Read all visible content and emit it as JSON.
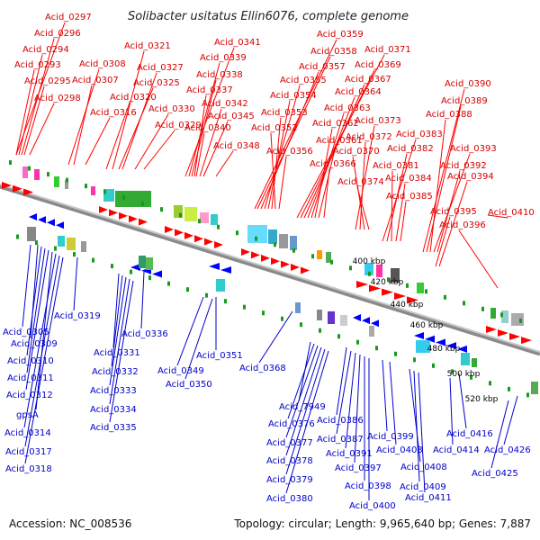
{
  "title": "Solibacter usitatus Ellin6076, complete genome",
  "footer": {
    "accession": "Accession: NC_008536",
    "summary": "Topology: circular; Length: 9,965,640 bp; Genes: 7,887"
  },
  "ticks": [
    "400 kbp",
    "420 kbp",
    "440 kbp",
    "460 kbp",
    "480 kbp",
    "500 kbp",
    "520 kbp"
  ],
  "labels_top": [
    "Acid_0297",
    "Acid_0296",
    "Acid_0294",
    "Acid_0293",
    "Acid_0295",
    "Acid_0298",
    "Acid_0308",
    "Acid_0307",
    "Acid_0316",
    "Acid_0321",
    "Acid_0327",
    "Acid_0325",
    "Acid_0320",
    "Acid_0330",
    "Acid_0329",
    "Acid_0341",
    "Acid_0339",
    "Acid_0338",
    "Acid_0337",
    "Acid_0342",
    "Acid_0345",
    "Acid_0340",
    "Acid_0348",
    "Acid_0359",
    "Acid_0358",
    "Acid_0357",
    "Acid_0355",
    "Acid_0354",
    "Acid_0353",
    "Acid_0352",
    "Acid_0356",
    "Acid_0371",
    "Acid_0369",
    "Acid_0367",
    "Acid_0364",
    "Acid_0363",
    "Acid_0362",
    "Acid_0361",
    "Acid_0366",
    "Acid_0373",
    "Acid_0372",
    "Acid_0370",
    "Acid_0374",
    "Acid_0383",
    "Acid_0382",
    "Acid_0381",
    "Acid_0384",
    "Acid_0385",
    "Acid_0390",
    "Acid_0389",
    "Acid_0388",
    "Acid_0393",
    "Acid_0392",
    "Acid_0394",
    "Acid_0395",
    "Acid_0396",
    "Acid_0410"
  ],
  "labels_bottom": [
    "Acid_0305",
    "Acid_0309",
    "Acid_0310",
    "Acid_0311",
    "Acid_0312",
    "gpsA",
    "Acid_0314",
    "Acid_0317",
    "Acid_0318",
    "Acid_0319",
    "Acid_0336",
    "Acid_0331",
    "Acid_0332",
    "Acid_0333",
    "Acid_0334",
    "Acid_0335",
    "Acid_0349",
    "Acid_0350",
    "Acid_0351",
    "Acid_0368",
    "Acid_7949",
    "Acid_0376",
    "Acid_0377",
    "Acid_0378",
    "Acid_0379",
    "Acid_0380",
    "Acid_0386",
    "Acid_0387",
    "Acid_0391",
    "Acid_0397",
    "Acid_0398",
    "Acid_0400",
    "Acid_0399",
    "Acid_0403",
    "Acid_0408",
    "Acid_0409",
    "Acid_0411",
    "Acid_0414",
    "Acid_0416",
    "Acid_0426",
    "Acid_0425"
  ]
}
